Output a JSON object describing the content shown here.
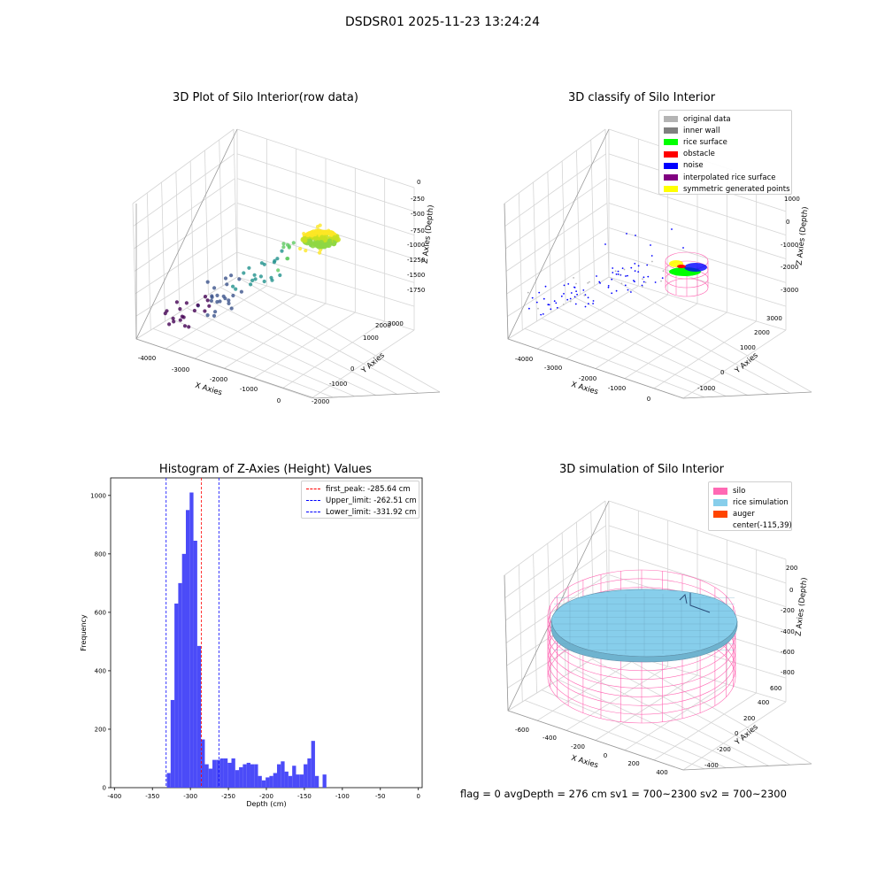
{
  "suptitle": "DSDSR01 2025-11-23 13:24:24",
  "status_line": "flag = 0     avgDepth = 276 cm  sv1 = 700~2300  sv2 = 700~2300",
  "chart_data": [
    {
      "type": "scatter",
      "title": "3D Plot of Silo Interior(row data)",
      "xlabel": "X Axies",
      "ylabel": "Y Axies",
      "zlabel": "Z Axies (Depth)",
      "x_ticks": [
        "-4000",
        "-3000",
        "-2000",
        "-1000",
        "0"
      ],
      "y_ticks": [
        "-2000",
        "-1000",
        "0",
        "1000",
        "2000",
        "3000"
      ],
      "z_ticks": [
        "0",
        "-250",
        "-500",
        "-750",
        "-1000",
        "-1250",
        "-1500",
        "-1750"
      ]
    },
    {
      "type": "scatter",
      "title": "3D classify of Silo Interior",
      "xlabel": "X Axies",
      "ylabel": "Y Axies",
      "zlabel": "Z Axies (Depth)",
      "x_ticks": [
        "-4000",
        "-3000",
        "-2000",
        "-1000",
        "0"
      ],
      "y_ticks": [
        "-1000",
        "0",
        "1000",
        "2000",
        "3000"
      ],
      "z_ticks": [
        "1000",
        "0",
        "-1000",
        "-2000",
        "-3000"
      ],
      "legend": [
        {
          "label": "original data",
          "color": "#b4b4b4"
        },
        {
          "label": "inner wall",
          "color": "#808080"
        },
        {
          "label": "rice surface",
          "color": "#00ff00"
        },
        {
          "label": "obstacle",
          "color": "#ff0000"
        },
        {
          "label": "noise",
          "color": "#0000ff"
        },
        {
          "label": "interpolated rice surface",
          "color": "#800080"
        },
        {
          "label": "symmetric generated points",
          "color": "#ffff00"
        }
      ]
    },
    {
      "type": "bar",
      "title": "Histogram of Z-Axies (Height) Values",
      "xlabel": "Depth (cm)",
      "ylabel": "Frequency",
      "xlim": [
        -405,
        5
      ],
      "ylim": [
        0,
        1060
      ],
      "x_ticks": [
        -400,
        -350,
        -300,
        -250,
        -200,
        -150,
        -100,
        -50,
        0
      ],
      "y_ticks": [
        0,
        200,
        400,
        600,
        800,
        1000
      ],
      "bin_start": -336,
      "bin_width": 5,
      "values": [
        0,
        50,
        300,
        630,
        700,
        800,
        950,
        1010,
        845,
        485,
        165,
        80,
        65,
        95,
        95,
        100,
        100,
        85,
        100,
        60,
        70,
        80,
        85,
        80,
        80,
        40,
        25,
        35,
        40,
        50,
        80,
        90,
        55,
        40,
        75,
        45,
        45,
        80,
        100,
        160,
        40,
        0,
        45
      ],
      "color": "#4b4bf8",
      "lines": [
        {
          "label": "first_peak: -285.64 cm",
          "x": -285.64,
          "color": "#ff0000"
        },
        {
          "label": "Upper_limit: -262.51 cm",
          "x": -262.51,
          "color": "#0000ff"
        },
        {
          "label": "Lower_limit: -331.92 cm",
          "x": -331.92,
          "color": "#0000ff"
        }
      ]
    },
    {
      "type": "area",
      "title": "3D simulation of Silo Interior",
      "xlabel": "X Axies",
      "ylabel": "Y Axies",
      "zlabel": "Z Axies (Depth)",
      "x_ticks": [
        "-600",
        "-400",
        "-200",
        "0",
        "200",
        "400"
      ],
      "y_ticks": [
        "-400",
        "-200",
        "0",
        "200",
        "400",
        "600"
      ],
      "z_ticks": [
        "200",
        "0",
        "-200",
        "-400",
        "-600",
        "-800"
      ],
      "legend": [
        {
          "label": "silo",
          "color": "#ff69b4"
        },
        {
          "label": "rice simulation",
          "color": "#87ceeb"
        },
        {
          "label": "auger",
          "color": "#ff4500"
        },
        {
          "label": "center(-115,39)",
          "color": ""
        }
      ]
    }
  ]
}
